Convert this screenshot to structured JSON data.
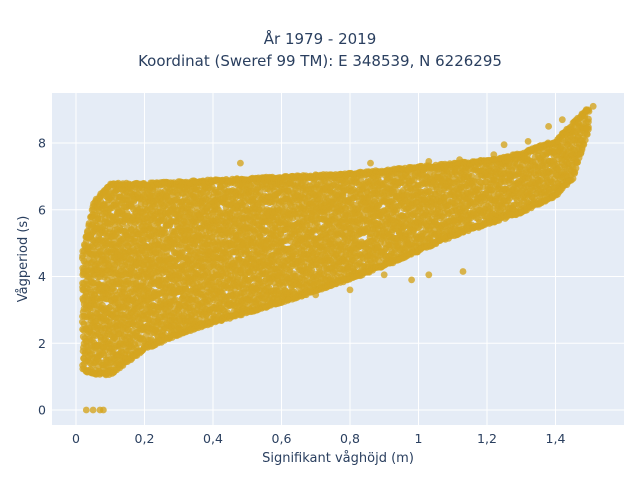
{
  "chart_data": {
    "type": "scatter",
    "title": "År 1979 - 2019",
    "subtitle": "Koordinat (Sweref 99 TM): E 348539, N 6226295",
    "xlabel": "Signifikant våghöjd (m)",
    "ylabel": "Vågperiod (s)",
    "xlim": [
      -0.07,
      1.6
    ],
    "ylim": [
      -0.45,
      9.5
    ],
    "x_ticks": [
      0,
      0.2,
      0.4,
      0.6,
      0.8,
      1,
      1.2,
      1.4
    ],
    "x_tick_labels": [
      "0",
      "0,2",
      "0,4",
      "0,6",
      "0,8",
      "1",
      "1,2",
      "1,4"
    ],
    "y_ticks": [
      0,
      2,
      4,
      6,
      8
    ],
    "y_tick_labels": [
      "0",
      "2",
      "4",
      "6",
      "8"
    ],
    "grid": true,
    "colors": {
      "marker": "#d4a520",
      "plot_bg": "#e5ecf6",
      "grid": "#ffffff",
      "text": "#2a3f5f"
    },
    "envelope": {
      "x": [
        0.02,
        0.05,
        0.1,
        0.2,
        0.3,
        0.4,
        0.5,
        0.6,
        0.7,
        0.8,
        0.9,
        1.0,
        1.1,
        1.2,
        1.3,
        1.4,
        1.45,
        1.5
      ],
      "y_min": [
        1.2,
        1.05,
        1.05,
        1.8,
        2.25,
        2.6,
        2.9,
        3.2,
        3.55,
        3.9,
        4.3,
        4.75,
        5.2,
        5.55,
        5.9,
        6.4,
        6.9,
        8.5
      ],
      "y_max": [
        4.8,
        6.2,
        6.8,
        6.8,
        6.85,
        6.9,
        6.95,
        7.0,
        7.05,
        7.1,
        7.2,
        7.3,
        7.4,
        7.5,
        7.7,
        8.1,
        8.6,
        9.1
      ]
    },
    "outliers": [
      {
        "x": 0.03,
        "y": 0
      },
      {
        "x": 0.05,
        "y": 0
      },
      {
        "x": 0.07,
        "y": 0
      },
      {
        "x": 0.08,
        "y": 0
      },
      {
        "x": 0.02,
        "y": 4.05
      },
      {
        "x": 0.02,
        "y": 3.6
      },
      {
        "x": 0.03,
        "y": 5.2
      },
      {
        "x": 0.48,
        "y": 7.4
      },
      {
        "x": 0.86,
        "y": 7.4
      },
      {
        "x": 1.03,
        "y": 7.45
      },
      {
        "x": 1.12,
        "y": 7.5
      },
      {
        "x": 1.22,
        "y": 7.65
      },
      {
        "x": 1.25,
        "y": 7.95
      },
      {
        "x": 1.32,
        "y": 8.05
      },
      {
        "x": 1.38,
        "y": 8.5
      },
      {
        "x": 1.42,
        "y": 8.7
      },
      {
        "x": 1.49,
        "y": 9.0
      },
      {
        "x": 1.51,
        "y": 9.1
      },
      {
        "x": 0.9,
        "y": 4.05
      },
      {
        "x": 0.98,
        "y": 3.9
      },
      {
        "x": 1.03,
        "y": 4.05
      },
      {
        "x": 1.13,
        "y": 4.15
      },
      {
        "x": 0.62,
        "y": 3.3
      },
      {
        "x": 0.7,
        "y": 3.45
      },
      {
        "x": 0.8,
        "y": 3.6
      }
    ]
  }
}
